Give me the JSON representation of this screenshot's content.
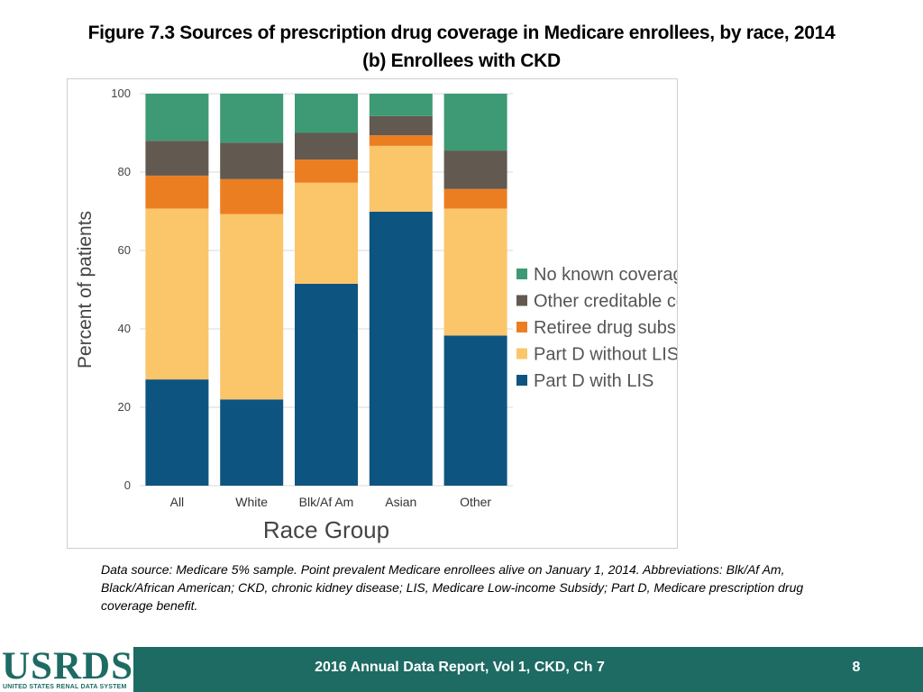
{
  "title": {
    "line1": "Figure 7.3 Sources of prescription drug coverage in Medicare enrollees, by race, 2014",
    "line2": "(b) Enrollees with CKD"
  },
  "chart_data": {
    "type": "bar",
    "stacked": true,
    "categories": [
      "All",
      "White",
      "Blk/Af Am",
      "Asian",
      "Other"
    ],
    "series": [
      {
        "name": "Part D with LIS",
        "color": "#0e5480",
        "values": [
          27.1,
          22.0,
          51.5,
          69.9,
          38.3
        ]
      },
      {
        "name": "Part D without LIS",
        "color": "#fbc56a",
        "values": [
          43.6,
          47.3,
          25.8,
          16.8,
          32.4
        ]
      },
      {
        "name": "Retiree drug subsidy",
        "color": "#ec7e22",
        "values": [
          8.4,
          8.9,
          5.9,
          2.7,
          5.0
        ]
      },
      {
        "name": "Other creditable coverage",
        "color": "#625950",
        "values": [
          8.9,
          9.3,
          6.8,
          4.9,
          9.8
        ]
      },
      {
        "name": "No known coverage",
        "color": "#3e9a74",
        "values": [
          12.0,
          12.5,
          10.0,
          5.7,
          14.5
        ]
      }
    ],
    "legend_order": [
      "No known coverage",
      "Other creditable coverage",
      "Retiree drug subsidy",
      "Part D without LIS",
      "Part D with LIS"
    ],
    "ylim": [
      0,
      100
    ],
    "yticks": [
      0,
      20,
      40,
      60,
      80,
      100
    ],
    "xlabel": "Race Group",
    "ylabel": "Percent of patients",
    "grid": true,
    "legend_position": "right"
  },
  "note": "Data source: Medicare 5% sample. Point prevalent Medicare enrollees alive on January 1, 2014. Abbreviations: Blk/Af Am, Black/African American; CKD, chronic kidney disease; LIS, Medicare Low-income Subsidy; Part D, Medicare prescription drug coverage benefit.",
  "footer": {
    "logo_text": "USRDS",
    "logo_subtext": "UNITED STATES RENAL DATA SYSTEM",
    "report": "2016 Annual Data Report, Vol 1, CKD, Ch 7",
    "page_number": "8"
  }
}
